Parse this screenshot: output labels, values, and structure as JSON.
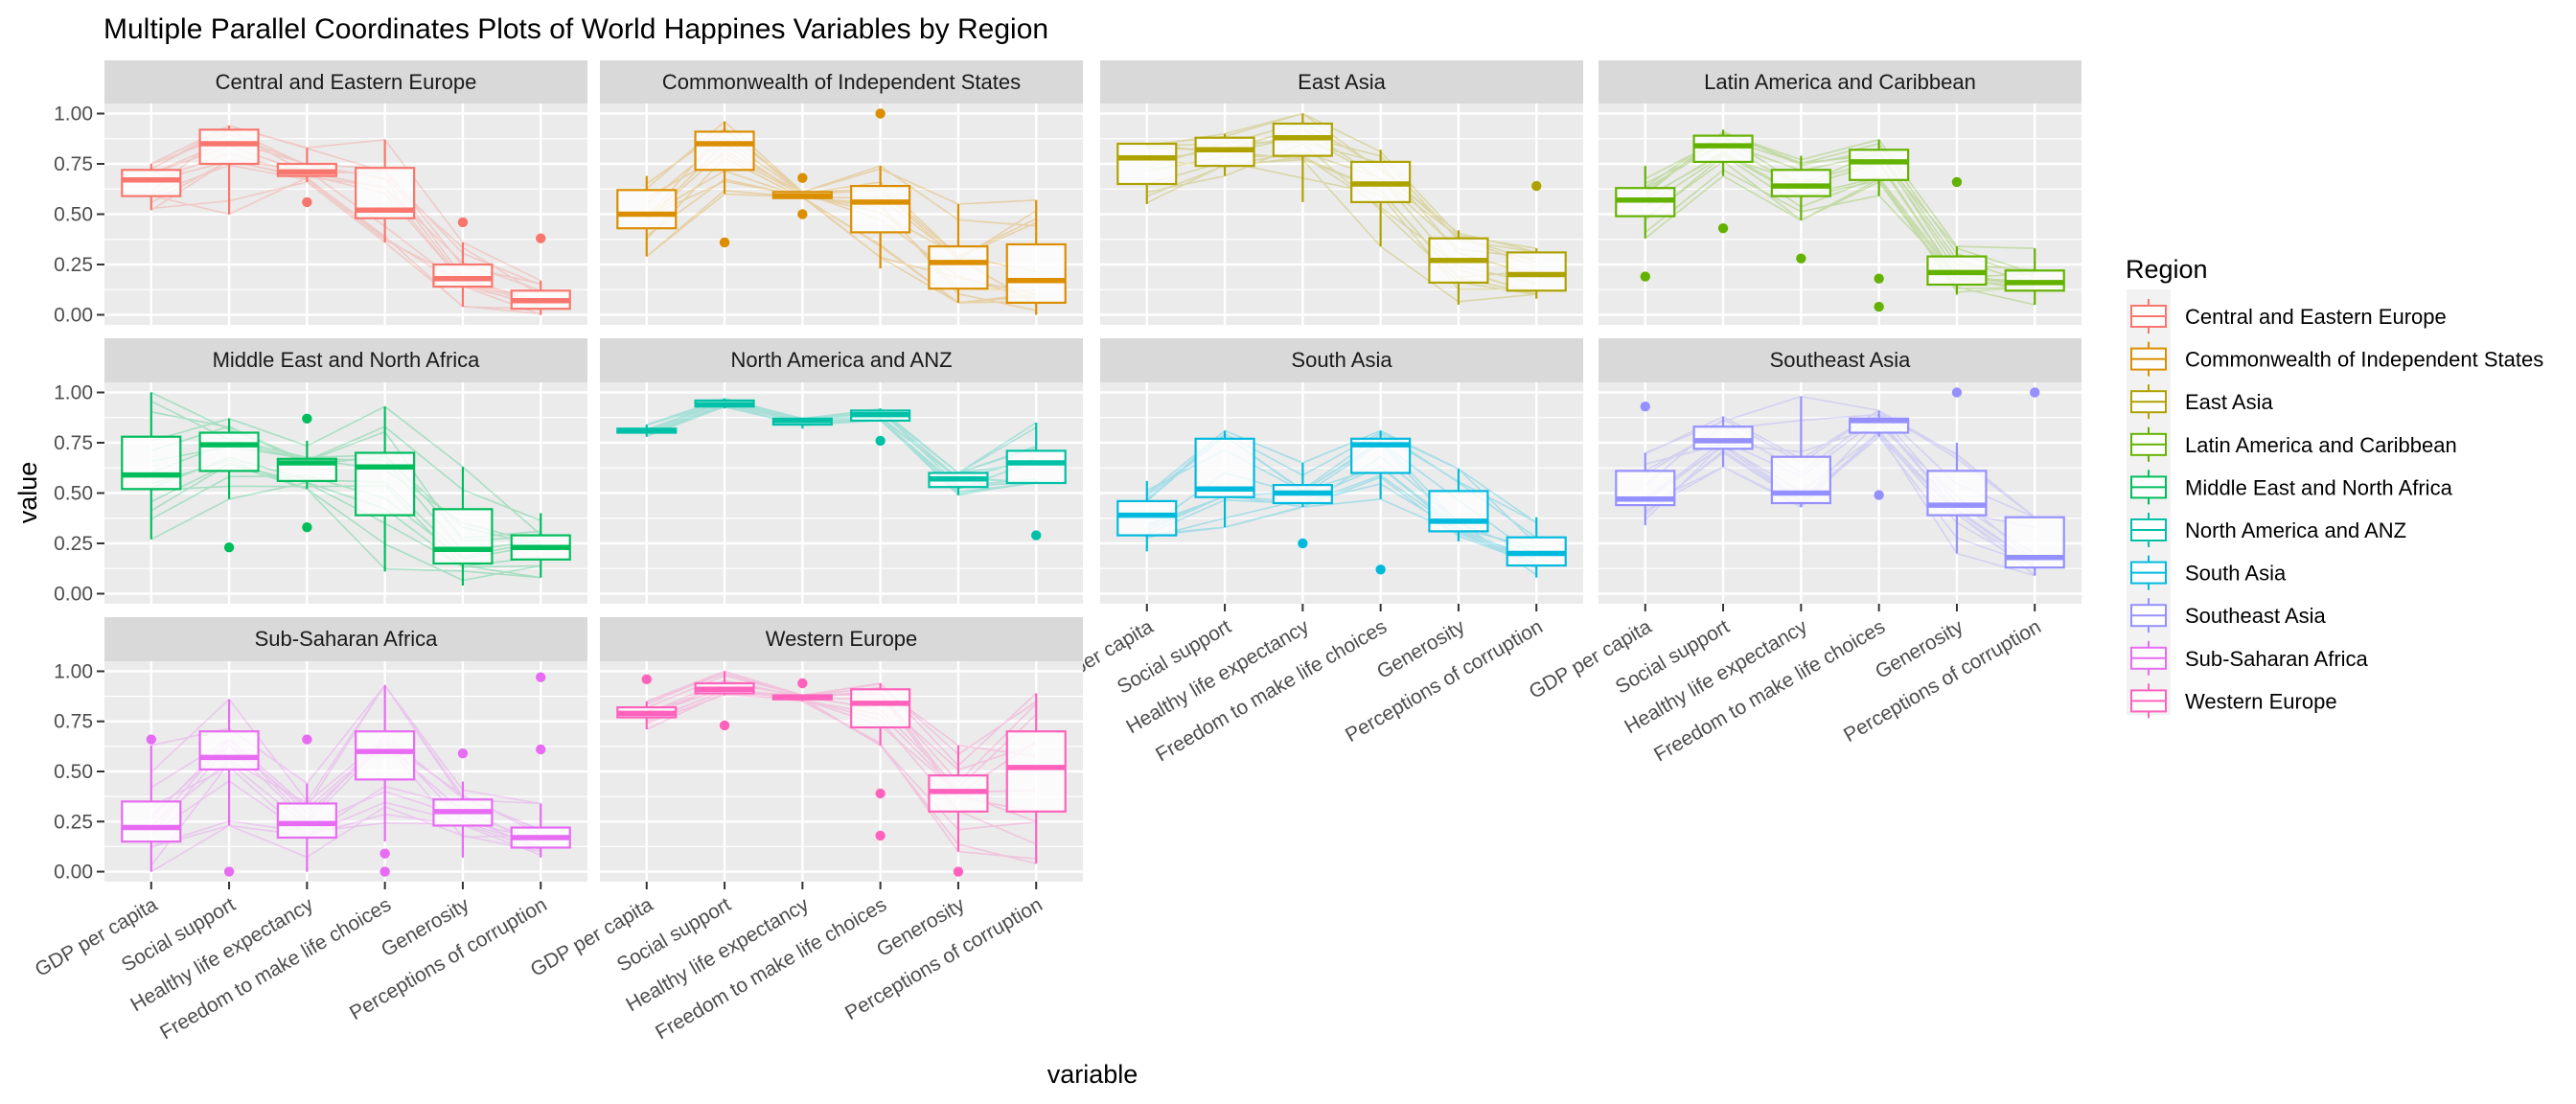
{
  "chart_data": {
    "type": "boxplot-parallel-coordinates-facets",
    "title": "Multiple Parallel Coordinates Plots of World Happines Variables by Region",
    "xlabel": "variable",
    "ylabel": "value",
    "ylim": [
      0,
      1
    ],
    "y_ticks": [
      "0.00",
      "0.25",
      "0.50",
      "0.75",
      "1.00"
    ],
    "y_tick_values": [
      0,
      0.25,
      0.5,
      0.75,
      1.0
    ],
    "grid": true,
    "variables": [
      "GDP per capita",
      "Social support",
      "Healthy life expectancy",
      "Freedom to make life choices",
      "Generosity",
      "Perceptions of corruption"
    ],
    "legend": {
      "title": "Region",
      "placement": "right",
      "entries": [
        "Central and Eastern Europe",
        "Commonwealth of Independent States",
        "East Asia",
        "Latin America and Caribbean",
        "Middle East and North Africa",
        "North America and ANZ",
        "South Asia",
        "Southeast Asia",
        "Sub-Saharan Africa",
        "Western Europe"
      ]
    },
    "panels": [
      {
        "region": "Central and Eastern Europe",
        "color": "#F8766D",
        "boxes": [
          {
            "lo": 0.52,
            "q1": 0.59,
            "med": 0.67,
            "q3": 0.72,
            "hi": 0.75,
            "outliers": []
          },
          {
            "lo": 0.5,
            "q1": 0.75,
            "med": 0.85,
            "q3": 0.92,
            "hi": 0.94,
            "outliers": []
          },
          {
            "lo": 0.66,
            "q1": 0.69,
            "med": 0.71,
            "q3": 0.75,
            "hi": 0.83,
            "outliers": [
              0.56
            ]
          },
          {
            "lo": 0.36,
            "q1": 0.48,
            "med": 0.52,
            "q3": 0.73,
            "hi": 0.87,
            "outliers": []
          },
          {
            "lo": 0.04,
            "q1": 0.14,
            "med": 0.18,
            "q3": 0.25,
            "hi": 0.36,
            "outliers": [
              0.46
            ]
          },
          {
            "lo": 0.0,
            "q1": 0.03,
            "med": 0.07,
            "q3": 0.12,
            "hi": 0.17,
            "outliers": [
              0.38
            ]
          }
        ]
      },
      {
        "region": "Commonwealth of Independent States",
        "color": "#DB8E00",
        "boxes": [
          {
            "lo": 0.29,
            "q1": 0.43,
            "med": 0.5,
            "q3": 0.62,
            "hi": 0.69,
            "outliers": []
          },
          {
            "lo": 0.6,
            "q1": 0.72,
            "med": 0.85,
            "q3": 0.91,
            "hi": 0.96,
            "outliers": [
              0.36
            ]
          },
          {
            "lo": 0.59,
            "q1": 0.58,
            "med": 0.59,
            "q3": 0.61,
            "hi": 0.61,
            "outliers": [
              0.68,
              0.5
            ]
          },
          {
            "lo": 0.23,
            "q1": 0.41,
            "med": 0.56,
            "q3": 0.64,
            "hi": 0.74,
            "outliers": [
              1.0
            ]
          },
          {
            "lo": 0.06,
            "q1": 0.13,
            "med": 0.26,
            "q3": 0.34,
            "hi": 0.55,
            "outliers": []
          },
          {
            "lo": 0.0,
            "q1": 0.06,
            "med": 0.17,
            "q3": 0.35,
            "hi": 0.57,
            "outliers": []
          }
        ]
      },
      {
        "region": "East Asia",
        "color": "#AEA200",
        "boxes": [
          {
            "lo": 0.55,
            "q1": 0.65,
            "med": 0.78,
            "q3": 0.85,
            "hi": 0.84,
            "outliers": []
          },
          {
            "lo": 0.69,
            "q1": 0.74,
            "med": 0.82,
            "q3": 0.88,
            "hi": 0.9,
            "outliers": []
          },
          {
            "lo": 0.56,
            "q1": 0.79,
            "med": 0.88,
            "q3": 0.95,
            "hi": 1.0,
            "outliers": []
          },
          {
            "lo": 0.34,
            "q1": 0.56,
            "med": 0.65,
            "q3": 0.76,
            "hi": 0.82,
            "outliers": []
          },
          {
            "lo": 0.05,
            "q1": 0.16,
            "med": 0.27,
            "q3": 0.38,
            "hi": 0.42,
            "outliers": []
          },
          {
            "lo": 0.08,
            "q1": 0.12,
            "med": 0.2,
            "q3": 0.31,
            "hi": 0.33,
            "outliers": [
              0.64
            ]
          }
        ]
      },
      {
        "region": "Latin America and Caribbean",
        "color": "#64B200",
        "boxes": [
          {
            "lo": 0.38,
            "q1": 0.49,
            "med": 0.57,
            "q3": 0.63,
            "hi": 0.74,
            "outliers": [
              0.19
            ]
          },
          {
            "lo": 0.69,
            "q1": 0.76,
            "med": 0.84,
            "q3": 0.89,
            "hi": 0.92,
            "outliers": [
              0.43
            ]
          },
          {
            "lo": 0.47,
            "q1": 0.59,
            "med": 0.64,
            "q3": 0.72,
            "hi": 0.79,
            "outliers": [
              0.28
            ]
          },
          {
            "lo": 0.59,
            "q1": 0.67,
            "med": 0.76,
            "q3": 0.82,
            "hi": 0.87,
            "outliers": [
              0.18,
              0.04
            ]
          },
          {
            "lo": 0.1,
            "q1": 0.15,
            "med": 0.21,
            "q3": 0.29,
            "hi": 0.34,
            "outliers": [
              0.66
            ]
          },
          {
            "lo": 0.05,
            "q1": 0.12,
            "med": 0.16,
            "q3": 0.22,
            "hi": 0.33,
            "outliers": []
          }
        ]
      },
      {
        "region": "Middle East and North Africa",
        "color": "#00BD5C",
        "boxes": [
          {
            "lo": 0.27,
            "q1": 0.52,
            "med": 0.59,
            "q3": 0.78,
            "hi": 1.0,
            "outliers": []
          },
          {
            "lo": 0.47,
            "q1": 0.61,
            "med": 0.74,
            "q3": 0.8,
            "hi": 0.87,
            "outliers": [
              0.23
            ]
          },
          {
            "lo": 0.52,
            "q1": 0.56,
            "med": 0.65,
            "q3": 0.67,
            "hi": 0.76,
            "outliers": [
              0.87,
              0.33
            ]
          },
          {
            "lo": 0.11,
            "q1": 0.39,
            "med": 0.63,
            "q3": 0.7,
            "hi": 0.93,
            "outliers": []
          },
          {
            "lo": 0.04,
            "q1": 0.15,
            "med": 0.22,
            "q3": 0.42,
            "hi": 0.63,
            "outliers": []
          },
          {
            "lo": 0.08,
            "q1": 0.17,
            "med": 0.23,
            "q3": 0.29,
            "hi": 0.4,
            "outliers": []
          }
        ]
      },
      {
        "region": "North America and ANZ",
        "color": "#00C1A7",
        "boxes": [
          {
            "lo": 0.78,
            "q1": 0.8,
            "med": 0.81,
            "q3": 0.82,
            "hi": 0.84,
            "outliers": []
          },
          {
            "lo": 0.92,
            "q1": 0.93,
            "med": 0.94,
            "q3": 0.96,
            "hi": 0.97,
            "outliers": []
          },
          {
            "lo": 0.82,
            "q1": 0.84,
            "med": 0.86,
            "q3": 0.87,
            "hi": 0.87,
            "outliers": []
          },
          {
            "lo": 0.87,
            "q1": 0.86,
            "med": 0.89,
            "q3": 0.91,
            "hi": 0.92,
            "outliers": [
              0.76
            ]
          },
          {
            "lo": 0.49,
            "q1": 0.53,
            "med": 0.57,
            "q3": 0.6,
            "hi": 0.6,
            "outliers": []
          },
          {
            "lo": 0.56,
            "q1": 0.55,
            "med": 0.65,
            "q3": 0.71,
            "hi": 0.85,
            "outliers": [
              0.29
            ]
          }
        ]
      },
      {
        "region": "South Asia",
        "color": "#00BADE",
        "boxes": [
          {
            "lo": 0.21,
            "q1": 0.29,
            "med": 0.39,
            "q3": 0.46,
            "hi": 0.56,
            "outliers": []
          },
          {
            "lo": 0.33,
            "q1": 0.48,
            "med": 0.52,
            "q3": 0.77,
            "hi": 0.81,
            "outliers": []
          },
          {
            "lo": 0.43,
            "q1": 0.45,
            "med": 0.5,
            "q3": 0.54,
            "hi": 0.65,
            "outliers": [
              0.25
            ]
          },
          {
            "lo": 0.47,
            "q1": 0.6,
            "med": 0.74,
            "q3": 0.77,
            "hi": 0.81,
            "outliers": [
              0.12
            ]
          },
          {
            "lo": 0.26,
            "q1": 0.31,
            "med": 0.36,
            "q3": 0.51,
            "hi": 0.62,
            "outliers": []
          },
          {
            "lo": 0.08,
            "q1": 0.14,
            "med": 0.2,
            "q3": 0.28,
            "hi": 0.38,
            "outliers": []
          }
        ]
      },
      {
        "region": "Southeast Asia",
        "color": "#9590FF",
        "boxes": [
          {
            "lo": 0.34,
            "q1": 0.44,
            "med": 0.47,
            "q3": 0.61,
            "hi": 0.7,
            "outliers": [
              0.93
            ]
          },
          {
            "lo": 0.63,
            "q1": 0.72,
            "med": 0.76,
            "q3": 0.83,
            "hi": 0.88,
            "outliers": []
          },
          {
            "lo": 0.43,
            "q1": 0.45,
            "med": 0.5,
            "q3": 0.68,
            "hi": 0.98,
            "outliers": []
          },
          {
            "lo": 0.78,
            "q1": 0.8,
            "med": 0.86,
            "q3": 0.87,
            "hi": 0.91,
            "outliers": [
              0.49
            ]
          },
          {
            "lo": 0.2,
            "q1": 0.39,
            "med": 0.44,
            "q3": 0.61,
            "hi": 0.75,
            "outliers": [
              1.0
            ]
          },
          {
            "lo": 0.09,
            "q1": 0.13,
            "med": 0.18,
            "q3": 0.38,
            "hi": 0.38,
            "outliers": [
              1.0
            ]
          }
        ]
      },
      {
        "region": "Sub-Saharan Africa",
        "color": "#E76BF3",
        "boxes": [
          {
            "lo": 0.0,
            "q1": 0.15,
            "med": 0.22,
            "q3": 0.35,
            "hi": 0.63,
            "outliers": [
              0.66
            ]
          },
          {
            "lo": 0.23,
            "q1": 0.51,
            "med": 0.57,
            "q3": 0.7,
            "hi": 0.86,
            "outliers": [
              0.0
            ]
          },
          {
            "lo": 0.0,
            "q1": 0.17,
            "med": 0.24,
            "q3": 0.34,
            "hi": 0.44,
            "outliers": [
              0.66
            ]
          },
          {
            "lo": 0.15,
            "q1": 0.46,
            "med": 0.6,
            "q3": 0.7,
            "hi": 0.93,
            "outliers": [
              0.09,
              0.0
            ]
          },
          {
            "lo": 0.07,
            "q1": 0.23,
            "med": 0.3,
            "q3": 0.36,
            "hi": 0.45,
            "outliers": [
              0.59
            ]
          },
          {
            "lo": 0.07,
            "q1": 0.12,
            "med": 0.17,
            "q3": 0.22,
            "hi": 0.34,
            "outliers": [
              0.97,
              0.61
            ]
          }
        ]
      },
      {
        "region": "Western Europe",
        "color": "#FF62BC",
        "boxes": [
          {
            "lo": 0.71,
            "q1": 0.77,
            "med": 0.79,
            "q3": 0.82,
            "hi": 0.85,
            "outliers": [
              0.96
            ]
          },
          {
            "lo": 0.88,
            "q1": 0.89,
            "med": 0.91,
            "q3": 0.94,
            "hi": 1.0,
            "outliers": [
              0.73
            ]
          },
          {
            "lo": 0.85,
            "q1": 0.86,
            "med": 0.87,
            "q3": 0.88,
            "hi": 0.88,
            "outliers": [
              0.94
            ]
          },
          {
            "lo": 0.63,
            "q1": 0.72,
            "med": 0.84,
            "q3": 0.91,
            "hi": 0.94,
            "outliers": [
              0.39,
              0.18
            ]
          },
          {
            "lo": 0.1,
            "q1": 0.3,
            "med": 0.4,
            "q3": 0.48,
            "hi": 0.63,
            "outliers": [
              0.0
            ]
          },
          {
            "lo": 0.04,
            "q1": 0.3,
            "med": 0.52,
            "q3": 0.7,
            "hi": 0.89,
            "outliers": []
          }
        ]
      }
    ]
  }
}
